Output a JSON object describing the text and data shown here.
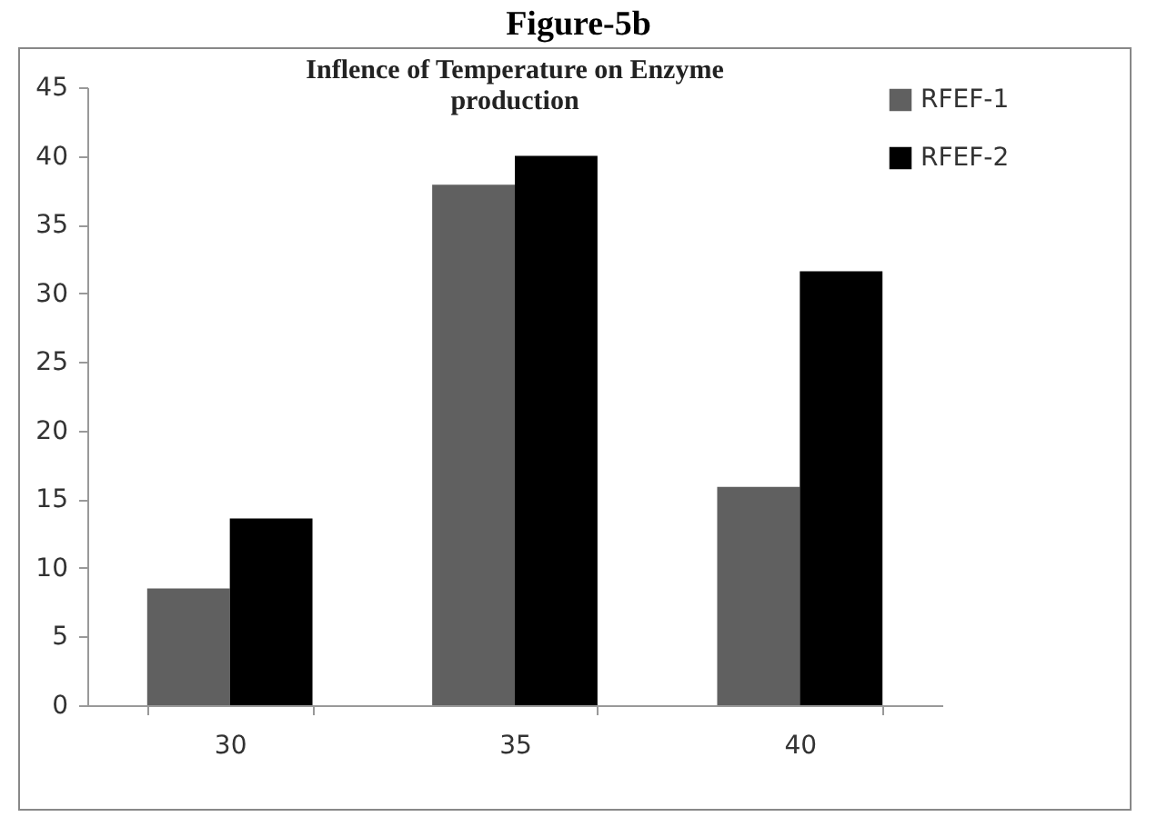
{
  "chart_data": {
    "type": "bar",
    "title": "Figure-5b",
    "subtitle": "Inflence of Temperature  on Enzyme production",
    "categories": [
      "30",
      "35",
      "40"
    ],
    "series": [
      {
        "name": "RFEF-1",
        "color": "#606060",
        "values": [
          8.5,
          37.9,
          15.9
        ]
      },
      {
        "name": "RFEF-2",
        "color": "#000000",
        "values": [
          13.6,
          40.0,
          31.6
        ]
      }
    ],
    "ylim": [
      0,
      45
    ],
    "yticks": [
      0,
      5,
      10,
      15,
      20,
      25,
      30,
      35,
      40,
      45
    ],
    "grid": false,
    "legend": "right"
  }
}
